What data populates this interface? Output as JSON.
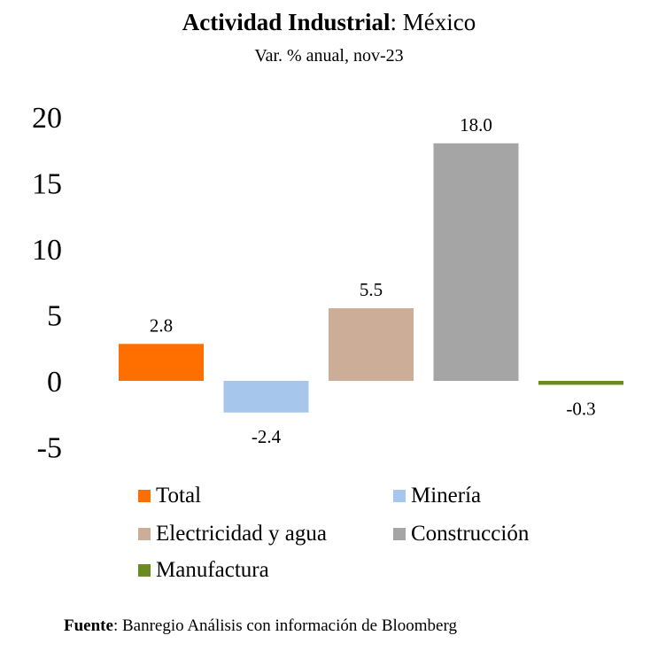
{
  "title_bold": "Actividad Industrial",
  "title_rest": ": México",
  "subtitle": "Var. % anual, nov-23",
  "source_bold": "Fuente",
  "source_rest": ": Banregio Análisis con información de Bloomberg",
  "chart_data": {
    "type": "bar",
    "categories": [
      "Total",
      "Minería",
      "Electricidad y agua",
      "Construcción",
      "Manufactura"
    ],
    "values": [
      2.8,
      -2.4,
      5.5,
      18.0,
      -0.3
    ],
    "value_labels": [
      "2.8",
      "-2.4",
      "5.5",
      "18.0",
      "-0.3"
    ],
    "colors": [
      "#FF6F00",
      "#A7C6EC",
      "#CCAE98",
      "#A5A5A5",
      "#6A8A22"
    ],
    "ylim": [
      -5,
      20
    ],
    "yticks": [
      -5,
      0,
      5,
      10,
      15,
      20
    ],
    "grid": false,
    "legend_position": "bottom",
    "title": "Actividad Industrial: México",
    "subtitle": "Var. % anual, nov-23",
    "xlabel": "",
    "ylabel": ""
  }
}
